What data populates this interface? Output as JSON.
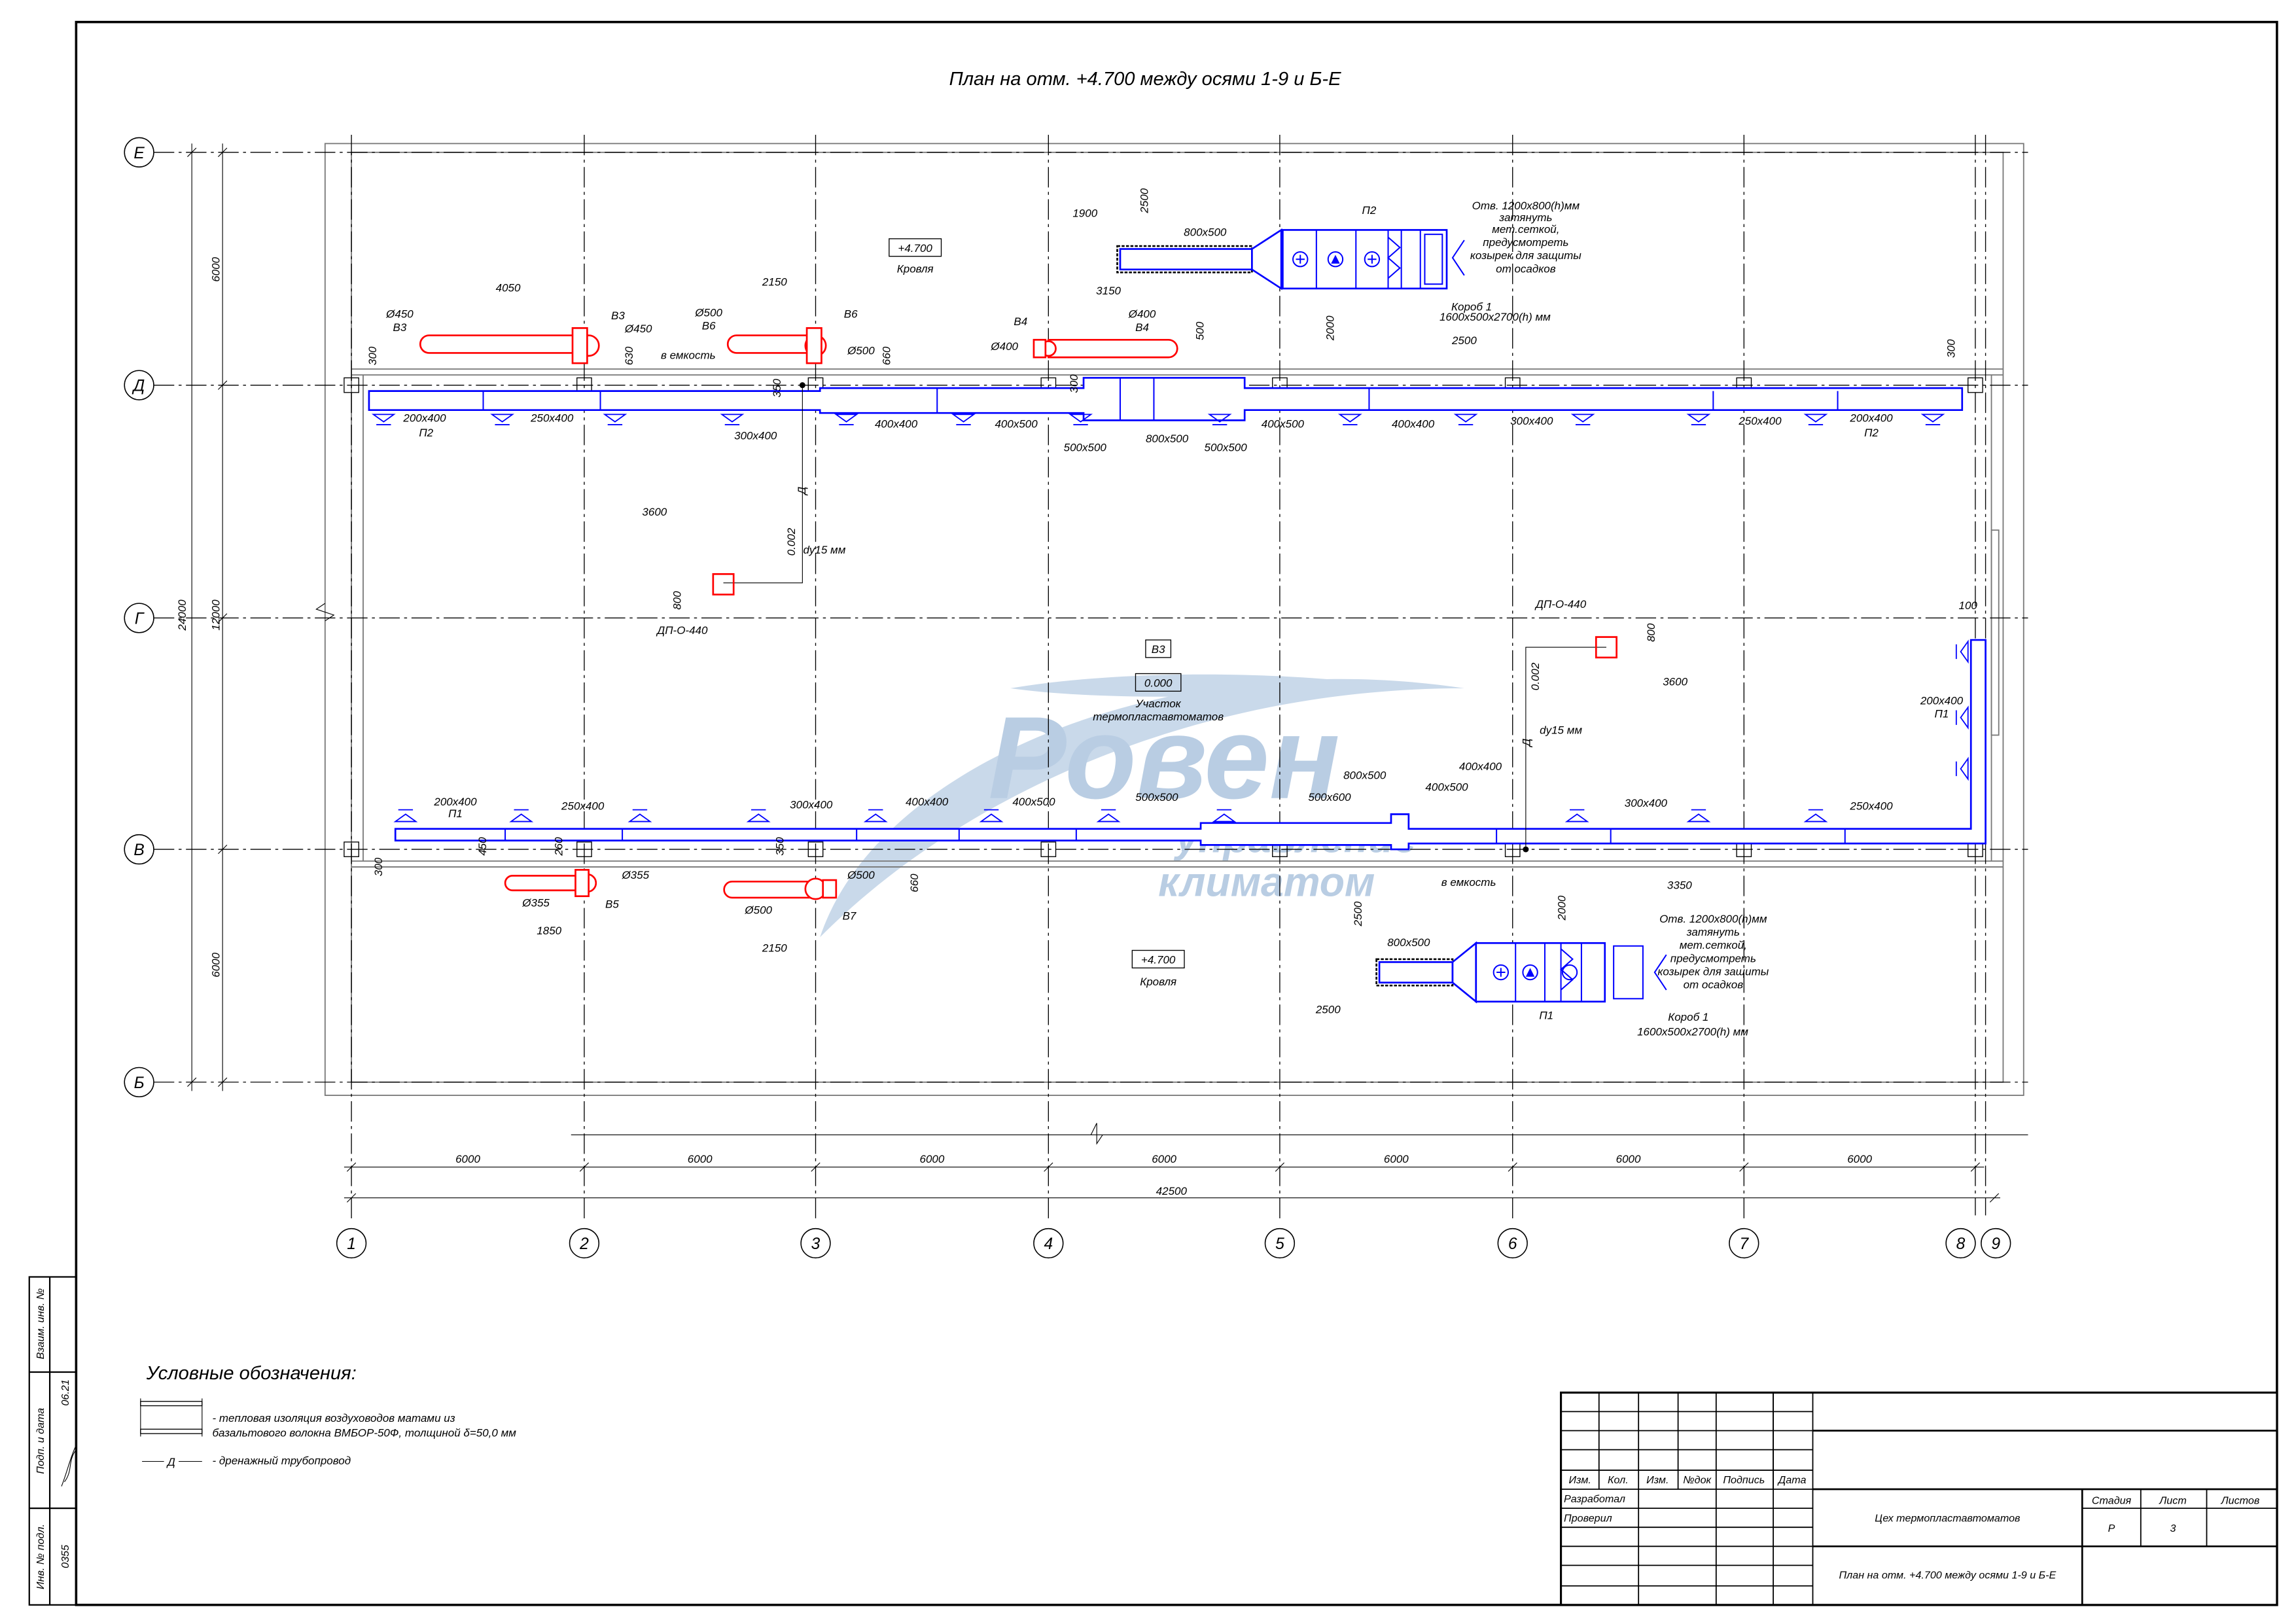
{
  "title": "План на отм. +4.700 между осями 1-9 и Б-Е",
  "colors": {
    "supply": "#0000ff",
    "exhaust": "#ff0000",
    "lines": "#000000",
    "watermark": "#c9d9ea"
  },
  "logo": {
    "name": "Ровен",
    "tagline_1": "управление",
    "tagline_2": "климатом"
  },
  "axes": {
    "rows": [
      "Е",
      "Д",
      "Г",
      "В",
      "Б"
    ],
    "columns": [
      "1",
      "2",
      "3",
      "4",
      "5",
      "6",
      "7",
      "8",
      "9"
    ]
  },
  "dimensions": {
    "left": [
      "6000",
      "24000",
      "12000",
      "6000"
    ],
    "bottom_spans": [
      "6000",
      "6000",
      "6000",
      "6000",
      "6000",
      "6000",
      "6000"
    ],
    "bottom_total": "42500"
  },
  "labels": [
    "+4.700",
    "Кровля",
    "В3",
    "0.000",
    "Участок",
    "термопластавтоматов",
    "+4.700",
    "Кровля",
    "200x400",
    "П2",
    "250x400",
    "300x400",
    "400x400",
    "400x500",
    "500x500",
    "800x500",
    "500x500",
    "400x500",
    "400x400",
    "300x400",
    "250x400",
    "200x400",
    "П2",
    "200x400",
    "П1",
    "250x400",
    "300x400",
    "400x400",
    "400x500",
    "500x500",
    "500x600",
    "800x500",
    "400x500",
    "400x400",
    "300x400",
    "250x400",
    "200x400",
    "П1",
    "4050",
    "Ø450",
    "В3",
    "В3",
    "Ø450",
    "630",
    "300",
    "в емкость",
    "350",
    "2150",
    "Ø500",
    "В6",
    "В6",
    "Ø500",
    "660",
    "В4",
    "Ø400",
    "Ø400",
    "В4",
    "3150",
    "500",
    "300",
    "1900",
    "2500",
    "800x500",
    "П2",
    "2000",
    "2500",
    "Короб 1",
    "1600x500x2700(h) мм",
    "Отв. 1200x800(h)мм",
    "затянуть",
    "мет.сеткой,",
    "предусмотреть",
    "козырек для защиты",
    "от осадков",
    "300",
    "3600",
    "Д",
    "0.002",
    "dу15 мм",
    "800",
    "ДП-О-440",
    "ДП-О-440",
    "800",
    "3600",
    "0.002",
    "Д",
    "dу15 мм",
    "100",
    "в емкость",
    "450",
    "260",
    "300",
    "Ø355",
    "Ø355",
    "В5",
    "1850",
    "350",
    "Ø500",
    "660",
    "Ø500",
    "В7",
    "2150",
    "3350",
    "2000",
    "2500",
    "800x500",
    "П1",
    "2500",
    "Отв. 1200x800(h)мм",
    "затянуть",
    "мет.сеткой,",
    "предусмотреть",
    "козырек для защиты",
    "от осадков",
    "Короб 1",
    "1600x500x2700(h) мм"
  ],
  "legend": {
    "title": "Условные обозначения:",
    "insulation_line1": "- тепловая изоляция воздуховодов матами из",
    "insulation_line2": "базальтового волокна ВМБОР-50Ф, толщиной δ=50,0 мм",
    "drain_symbol": "Д",
    "drain": "- дренажный трубопровод"
  },
  "side_stamp": {
    "vzaim": "Взаим. инв. №",
    "podp": "Подп. и дата",
    "date": "06.21",
    "inv": "Инв. № подл.",
    "inv_value": "0355"
  },
  "title_block": {
    "headers": [
      "Изм.",
      "Кол.",
      "Изм.",
      "№док",
      "Подпись",
      "Дата"
    ],
    "developed": "Разработал",
    "checked": "Проверил",
    "object": "Цех  термопластавтоматов",
    "sheet_title": "План на отм. +4.700 между осями 1-9 и Б-Е",
    "stage_label": "Стадия",
    "sheet_label": "Лист",
    "sheets_label": "Листов",
    "stage": "Р",
    "sheet": "3"
  }
}
